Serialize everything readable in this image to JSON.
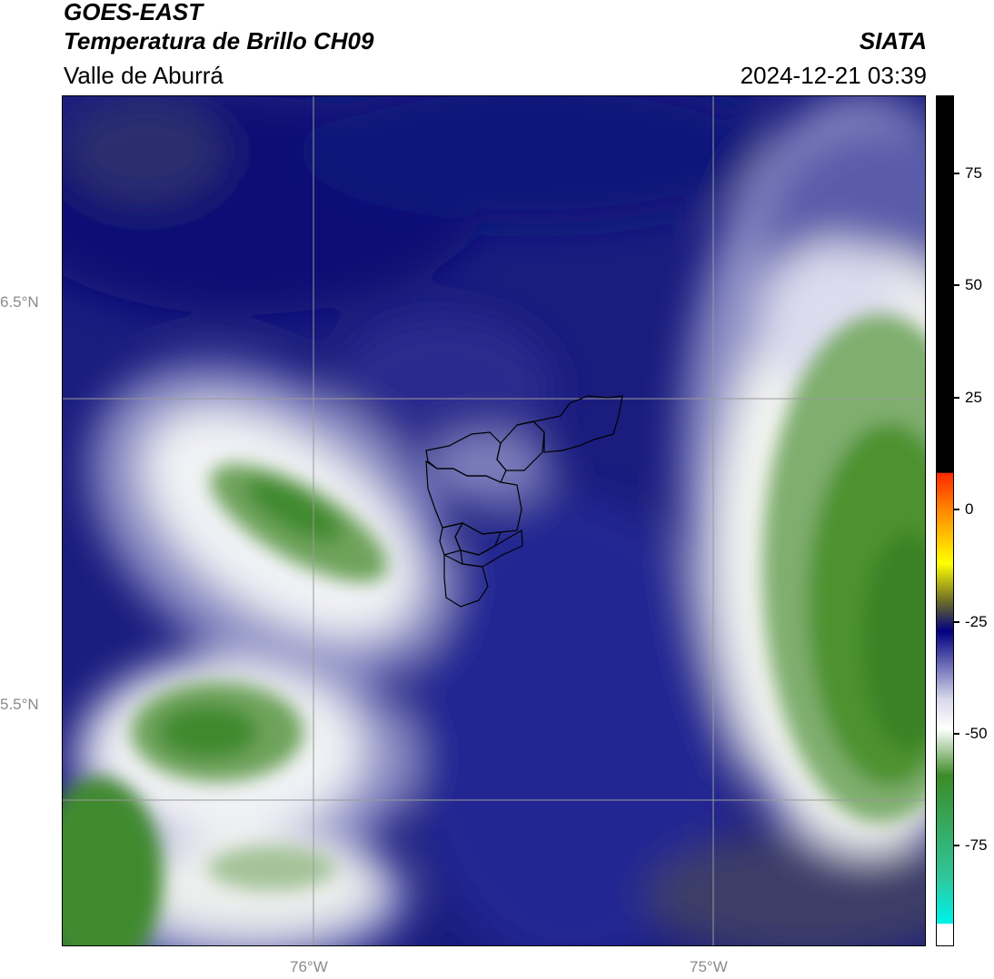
{
  "header": {
    "satellite": "GOES-EAST",
    "product": "Temperatura de Brillo CH09",
    "region": "Valle de Aburrá",
    "organization": "SIATA",
    "timestamp": "2024-12-21 03:39"
  },
  "map": {
    "latitude_labels": [
      "6.5°N",
      "5.5°N"
    ],
    "longitude_labels": [
      "76°W",
      "75°W"
    ],
    "gridlines": true
  },
  "colorbar": {
    "tick_labels": [
      "75",
      "50",
      "25",
      "0",
      "-25",
      "-50",
      "-75"
    ],
    "colors": {
      "warm_black": "#000000",
      "red": "#ff2a00",
      "orange": "#ff8c00",
      "yellow": "#ffff00",
      "olive": "#6b6b2a",
      "navy": "#000080",
      "light_lavender": "#d8d8ec",
      "white": "#ffffff",
      "green": "#3d8b28",
      "teal": "#2fc79a",
      "cyan": "#00f0e6"
    }
  },
  "colors": {
    "background_navy": "#17197a",
    "cloud_white": "#f4f6f2",
    "cold_green": "#3f8a2e",
    "gridline": "#9a9a9a",
    "label_gray": "#8a8a8a"
  }
}
